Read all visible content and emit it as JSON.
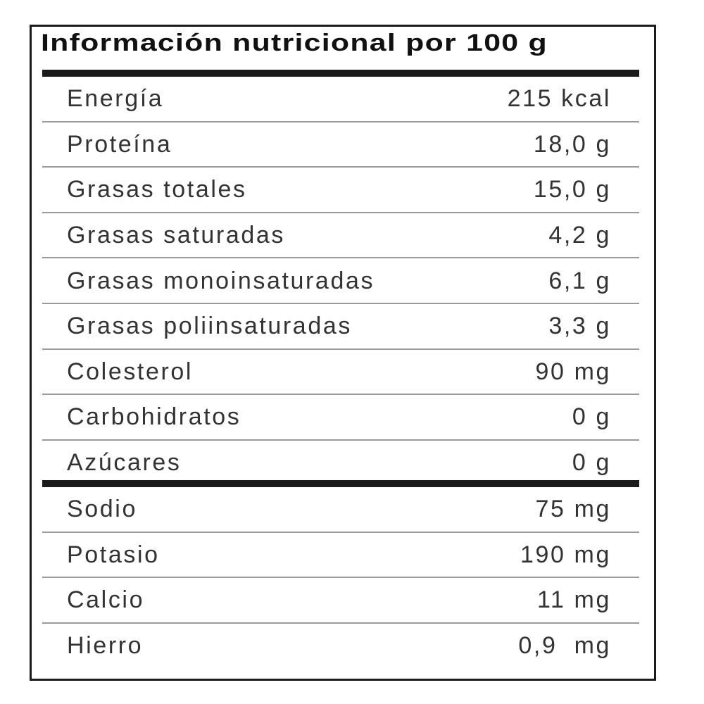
{
  "title": "Información nutricional por 100 g",
  "group1": [
    {
      "label": "Energía",
      "value": "215 kcal"
    },
    {
      "label": "Proteína",
      "value": "18,0 g"
    },
    {
      "label": "Grasas totales",
      "value": "15,0 g"
    },
    {
      "label": "Grasas saturadas",
      "value": "4,2 g"
    },
    {
      "label": "Grasas monoinsaturadas",
      "value": "6,1 g"
    },
    {
      "label": "Grasas poliinsaturadas",
      "value": "3,3 g"
    },
    {
      "label": "Colesterol",
      "value": "90 mg"
    },
    {
      "label": "Carbohidratos",
      "value": "0 g"
    },
    {
      "label": "Azúcares",
      "value": "0 g"
    }
  ],
  "group2": [
    {
      "label": "Sodio",
      "value": "75 mg"
    },
    {
      "label": "Potasio",
      "value": "190 mg"
    },
    {
      "label": "Calcio",
      "value": "11 mg"
    },
    {
      "label": "Hierro",
      "value": "0,9  mg"
    }
  ]
}
